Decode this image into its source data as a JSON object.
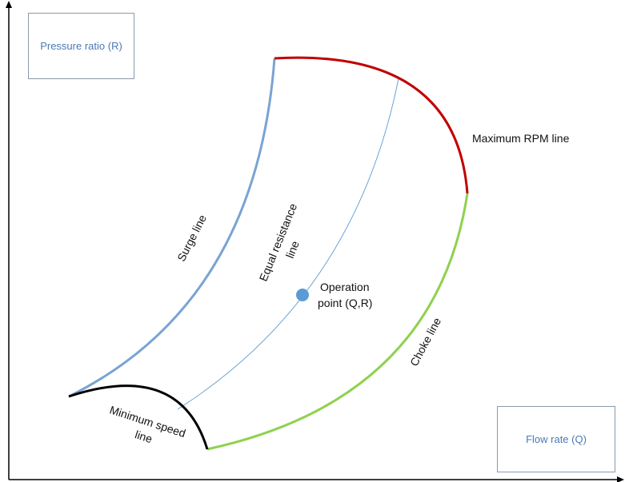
{
  "axes": {
    "y_label": "Pressure ratio (R)",
    "x_label": "Flow rate (Q)"
  },
  "curves": {
    "surge": {
      "label": "Surge line",
      "color": "#7aa3d4"
    },
    "max_rpm": {
      "label": "Maximum RPM line",
      "color": "#c00000"
    },
    "choke": {
      "label": "Choke line",
      "color": "#8fd14f"
    },
    "min_speed": {
      "label_line1": "Minimum speed",
      "label_line2": "line",
      "color": "#000000"
    },
    "equal_resistance": {
      "label_line1": "Equal resistance",
      "label_line2": "line",
      "color": "#5b9bd5"
    }
  },
  "operation_point": {
    "label_line1": "Operation",
    "label_line2": "point (Q,R)",
    "color": "#5b9bd5"
  }
}
